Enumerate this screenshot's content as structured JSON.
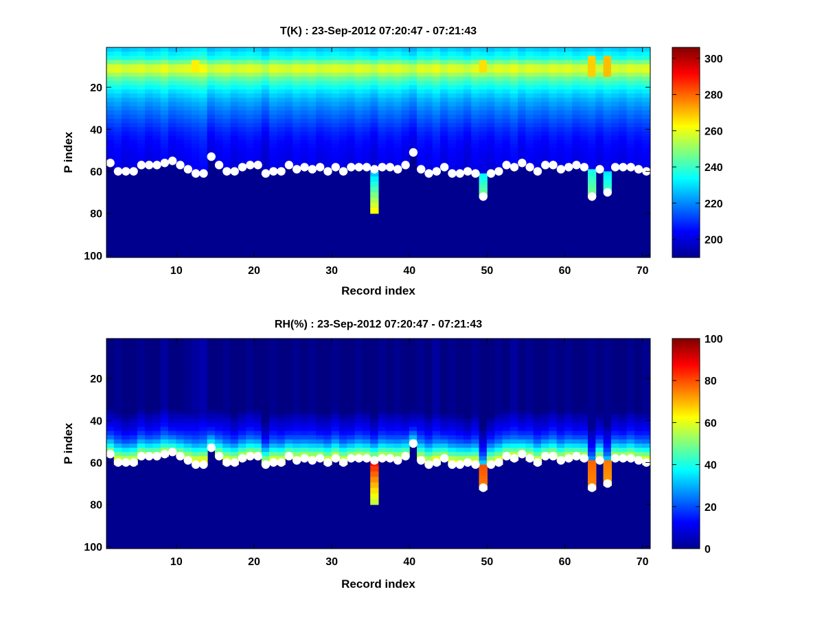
{
  "chart_data": [
    {
      "type": "heatmap",
      "title": "T(K) : 23-Sep-2012 07:20:47 - 07:21:43",
      "xlabel": "Record index",
      "ylabel": "P index",
      "xlim": [
        1,
        71
      ],
      "ylim": [
        101,
        1
      ],
      "y_reversed": true,
      "xticks": [
        10,
        20,
        30,
        40,
        50,
        60,
        70
      ],
      "yticks": [
        20,
        40,
        60,
        80,
        100
      ],
      "colormap": "jet",
      "colorbar": {
        "range": [
          190,
          306
        ],
        "ticks": [
          200,
          220,
          240,
          260,
          280,
          300
        ]
      },
      "profile": {
        "levels": [
          1,
          5,
          10,
          15,
          20,
          25,
          30,
          35,
          40,
          45,
          50,
          55,
          58
        ],
        "values": [
          228,
          236,
          262,
          244,
          232,
          224,
          218,
          213,
          208,
          205,
          203,
          202,
          201
        ],
        "below_surface": 190
      },
      "hot_columns": [
        {
          "x": 63,
          "top_level": 5,
          "bottom_level": 14,
          "value": 268
        },
        {
          "x": 65,
          "top_level": 5,
          "bottom_level": 14,
          "value": 270
        },
        {
          "x": 49,
          "top_level": 6,
          "bottom_level": 12,
          "value": 266
        },
        {
          "x": 12,
          "top_level": 7,
          "bottom_level": 12,
          "value": 264
        }
      ],
      "column_shift": [
        0,
        1,
        -1,
        0,
        1,
        -1,
        0,
        2,
        -1,
        0,
        1,
        2,
        3,
        -2,
        0,
        1,
        -1,
        0,
        1,
        0,
        -3,
        1,
        0,
        -1,
        1,
        0,
        1,
        -1,
        0,
        1,
        0,
        -1,
        1,
        0,
        -2,
        1,
        0,
        1,
        -1,
        -3,
        1,
        0,
        2,
        -1,
        1,
        0,
        -2,
        1,
        0,
        -1,
        1,
        0,
        2,
        -1,
        1,
        0,
        -1,
        1,
        0,
        1,
        -1,
        0,
        1,
        -1,
        1,
        0,
        -1,
        1,
        0,
        1
      ],
      "anomalies": [
        {
          "x": 35,
          "from_level": 60,
          "to_level": 80,
          "top_value": 225,
          "bottom_value": 265
        },
        {
          "x": 49,
          "from_level": 61,
          "to_level": 72,
          "top_value": 232,
          "bottom_value": 248
        },
        {
          "x": 63,
          "from_level": 59,
          "to_level": 72,
          "top_value": 235,
          "bottom_value": 248
        },
        {
          "x": 65,
          "from_level": 60,
          "to_level": 70,
          "top_value": 230,
          "bottom_value": 242
        }
      ]
    },
    {
      "type": "heatmap",
      "title": "RH(%) : 23-Sep-2012 07:20:47 - 07:21:43",
      "xlabel": "Record index",
      "ylabel": "P index",
      "xlim": [
        1,
        71
      ],
      "ylim": [
        101,
        1
      ],
      "y_reversed": true,
      "xticks": [
        10,
        20,
        30,
        40,
        50,
        60,
        70
      ],
      "yticks": [
        20,
        40,
        60,
        80,
        100
      ],
      "colormap": "jet",
      "colorbar": {
        "range": [
          0,
          100
        ],
        "ticks": [
          0,
          20,
          40,
          60,
          80,
          100
        ]
      },
      "profile": {
        "levels": [
          1,
          34,
          38,
          42,
          45,
          48,
          50,
          52,
          54,
          56,
          58
        ],
        "values": [
          0,
          0,
          6,
          10,
          15,
          22,
          30,
          38,
          48,
          58,
          63
        ],
        "below_surface": 0
      },
      "hot_columns": [],
      "column_shift": [
        0,
        1,
        -1,
        0,
        1,
        -1,
        0,
        2,
        -1,
        0,
        1,
        2,
        3,
        -2,
        0,
        1,
        -1,
        0,
        1,
        0,
        -3,
        1,
        0,
        -1,
        1,
        0,
        1,
        -1,
        0,
        1,
        0,
        -1,
        1,
        0,
        -2,
        1,
        0,
        1,
        -1,
        -3,
        1,
        0,
        2,
        -1,
        1,
        0,
        -2,
        1,
        0,
        -1,
        1,
        0,
        2,
        -1,
        1,
        0,
        -1,
        1,
        0,
        1,
        -1,
        0,
        1,
        -1,
        1,
        0,
        -1,
        1,
        0,
        1
      ],
      "anomalies": [
        {
          "x": 35,
          "from_level": 59,
          "to_level": 80,
          "top_value": 88,
          "bottom_value": 55
        },
        {
          "x": 49,
          "from_level": 61,
          "to_level": 72,
          "top_value": 80,
          "bottom_value": 75
        },
        {
          "x": 63,
          "from_level": 59,
          "to_level": 72,
          "top_value": 78,
          "bottom_value": 74
        },
        {
          "x": 65,
          "from_level": 59,
          "to_level": 70,
          "top_value": 76,
          "bottom_value": 72
        }
      ]
    }
  ],
  "surface_markers": {
    "x": [
      1,
      2,
      3,
      4,
      5,
      6,
      7,
      8,
      9,
      10,
      11,
      12,
      13,
      14,
      15,
      16,
      17,
      18,
      19,
      20,
      21,
      22,
      23,
      24,
      25,
      26,
      27,
      28,
      29,
      30,
      31,
      32,
      33,
      34,
      35,
      36,
      37,
      38,
      39,
      40,
      41,
      42,
      43,
      44,
      45,
      46,
      47,
      48,
      49,
      50,
      51,
      52,
      53,
      54,
      55,
      56,
      57,
      58,
      59,
      60,
      61,
      62,
      63,
      64,
      65,
      66,
      67,
      68,
      69,
      70
    ],
    "p_index": [
      56,
      60,
      60,
      60,
      57,
      57,
      57,
      56,
      55,
      57,
      59,
      61,
      61,
      53,
      57,
      60,
      60,
      58,
      57,
      57,
      61,
      60,
      60,
      57,
      59,
      58,
      59,
      58,
      60,
      58,
      60,
      58,
      58,
      58,
      59,
      58,
      58,
      59,
      57,
      51,
      59,
      61,
      60,
      58,
      61,
      61,
      60,
      61,
      72,
      61,
      60,
      57,
      58,
      56,
      58,
      60,
      57,
      57,
      59,
      58,
      57,
      58,
      72,
      59,
      70,
      58,
      58,
      58,
      59,
      60
    ]
  },
  "colors": {
    "axes_background": "#00008f",
    "marker": "#ffffff"
  }
}
